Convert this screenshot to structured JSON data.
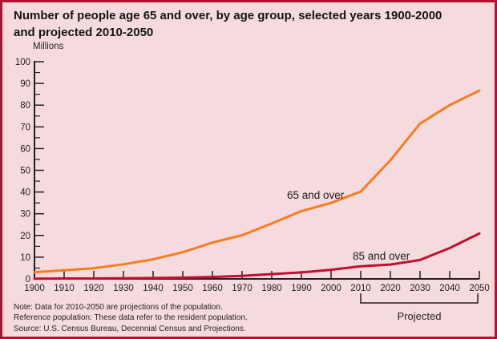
{
  "frame": {
    "background_color": "#f5dbdd",
    "border_color": "#b0122f"
  },
  "chart_data": {
    "type": "line",
    "title": "Number of people age 65 and over, by age group, selected years 1900-2000 and projected 2010-2050",
    "title_lines": [
      "Number of people age 65 and over, by age group, selected years 1900-2000",
      "and projected 2010-2050"
    ],
    "ylabel": "Millions",
    "xlabel": "",
    "x": [
      1900,
      1910,
      1920,
      1930,
      1940,
      1950,
      1960,
      1970,
      1980,
      1990,
      2000,
      2010,
      2020,
      2030,
      2040,
      2050
    ],
    "xlim": [
      1900,
      2050
    ],
    "ylim": [
      0,
      100
    ],
    "ytick_step": 10,
    "ytick_minor_step": 5,
    "yticks": [
      0,
      10,
      20,
      30,
      40,
      50,
      60,
      70,
      80,
      90,
      100
    ],
    "grid": false,
    "legend_position": "inline-labels",
    "series": [
      {
        "name": "65 and over",
        "color": "#f57e20",
        "values": [
          3.1,
          4.0,
          4.9,
          6.7,
          9.0,
          12.3,
          16.7,
          20.1,
          25.5,
          31.2,
          35.0,
          40.2,
          54.6,
          71.5,
          80.0,
          86.7
        ]
      },
      {
        "name": "85 and over",
        "color": "#c00f31",
        "values": [
          0.1,
          0.2,
          0.2,
          0.3,
          0.4,
          0.6,
          0.9,
          1.4,
          2.2,
          3.0,
          4.2,
          5.8,
          6.6,
          8.7,
          14.2,
          20.9
        ]
      }
    ],
    "projected": {
      "label": "Projected",
      "range": [
        2010,
        2050
      ]
    },
    "axis_color": "#231f20",
    "text_color": "#231f20"
  },
  "notes": {
    "lines": [
      "Note: Data for 2010-2050 are projections of the population.",
      "Reference population: These data refer to the resident population.",
      "Source: U.S. Census Bureau, Decennial Census and Projections."
    ]
  }
}
